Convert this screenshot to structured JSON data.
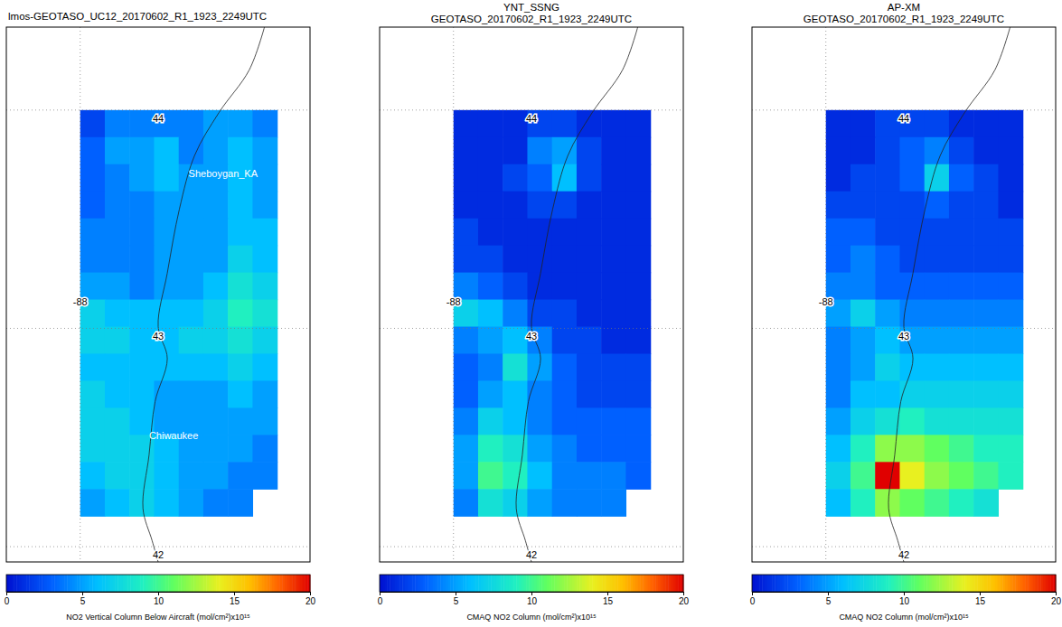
{
  "chart_data": [
    {
      "type": "heatmap",
      "title": "lmos-GEOTASO_UC12_20170602_R1_1923_2249UTC",
      "xlim": [
        -88.45,
        -86.6
      ],
      "ylim": [
        41.93,
        44.38
      ],
      "xticks": [
        -88
      ],
      "yticks": [
        42,
        43,
        44
      ],
      "grid": true,
      "annotations": [
        "Sheboygan_KA",
        "Chiwaukee"
      ],
      "x": [
        -87.925,
        -87.775,
        -87.625,
        -87.475,
        -87.325,
        -87.175,
        -87.025,
        -86.875
      ],
      "y": [
        43.938,
        43.814,
        43.69,
        43.566,
        43.442,
        43.318,
        43.194,
        43.07,
        42.946,
        42.822,
        42.698,
        42.574,
        42.45,
        42.326,
        42.202
      ],
      "cells": [
        [
          2,
          4,
          4,
          4,
          4,
          5,
          5,
          4
        ],
        [
          3,
          5,
          5,
          6,
          4,
          5,
          6,
          5
        ],
        [
          3,
          4,
          5,
          6,
          5,
          5,
          6,
          5
        ],
        [
          3,
          4,
          4,
          5,
          5,
          5,
          6,
          5
        ],
        [
          4,
          4,
          4,
          5,
          5,
          5,
          6,
          6
        ],
        [
          4,
          4,
          4,
          5,
          5,
          5,
          7,
          6
        ],
        [
          5,
          5,
          4,
          5,
          5,
          6,
          8,
          7
        ],
        [
          7,
          6,
          6,
          6,
          6,
          7,
          9,
          8
        ],
        [
          7,
          7,
          6,
          6,
          7,
          7,
          8,
          7
        ],
        [
          6,
          6,
          6,
          6,
          6,
          6,
          7,
          6
        ],
        [
          7,
          6,
          6,
          5,
          5,
          5,
          6,
          5
        ],
        [
          7,
          7,
          6,
          5,
          5,
          5,
          5,
          5
        ],
        [
          7,
          7,
          7,
          6,
          5,
          5,
          5,
          4
        ],
        [
          6,
          7,
          7,
          6,
          5,
          5,
          4,
          4
        ],
        [
          5,
          6,
          7,
          6,
          5,
          4,
          4,
          null
        ]
      ],
      "colorbar": {
        "range": [
          0,
          20
        ],
        "ticks": [
          0,
          5,
          10,
          15,
          20
        ],
        "label": "NO2 Vertical Column Below Aircraft (mol/cm²)x10¹⁵"
      }
    },
    {
      "type": "heatmap",
      "title": "YNT_SSNG",
      "subtitle": "GEOTASO_20170602_R1_1923_2249UTC",
      "xlim": [
        -88.45,
        -86.6
      ],
      "ylim": [
        41.93,
        44.38
      ],
      "xticks": [
        -88
      ],
      "yticks": [
        42,
        43,
        44
      ],
      "grid": true,
      "x": [
        -87.925,
        -87.775,
        -87.625,
        -87.475,
        -87.325,
        -87.175,
        -87.025,
        -86.875
      ],
      "y": [
        43.938,
        43.814,
        43.69,
        43.566,
        43.442,
        43.318,
        43.194,
        43.07,
        42.946,
        42.822,
        42.698,
        42.574,
        42.45,
        42.326,
        42.202
      ],
      "cells": [
        [
          1,
          1,
          1,
          2,
          2,
          1,
          1,
          1
        ],
        [
          1,
          1,
          1,
          4,
          5,
          2,
          1,
          1
        ],
        [
          1,
          1,
          2,
          3,
          6,
          2,
          1,
          1
        ],
        [
          1,
          1,
          1,
          2,
          2,
          1,
          1,
          1
        ],
        [
          2,
          1,
          1,
          1,
          1,
          1,
          1,
          1
        ],
        [
          2,
          2,
          1,
          1,
          1,
          1,
          1,
          1
        ],
        [
          4,
          3,
          2,
          1,
          1,
          1,
          1,
          1
        ],
        [
          7,
          6,
          4,
          2,
          2,
          1,
          1,
          1
        ],
        [
          4,
          5,
          6,
          4,
          2,
          2,
          1,
          1
        ],
        [
          3,
          4,
          8,
          5,
          3,
          2,
          2,
          2
        ],
        [
          3,
          5,
          6,
          4,
          3,
          2,
          2,
          2
        ],
        [
          4,
          7,
          6,
          4,
          3,
          3,
          3,
          3
        ],
        [
          5,
          9,
          8,
          5,
          4,
          3,
          3,
          3
        ],
        [
          5,
          10,
          9,
          6,
          4,
          4,
          4,
          3
        ],
        [
          4,
          8,
          7,
          5,
          4,
          4,
          4,
          null
        ]
      ],
      "colorbar": {
        "range": [
          0,
          20
        ],
        "ticks": [
          0,
          5,
          10,
          15,
          20
        ],
        "label": "CMAQ NO2 Column (mol/cm²)x10¹⁵"
      }
    },
    {
      "type": "heatmap",
      "title": "AP-XM",
      "subtitle": "GEOTASO_20170602_R1_1923_2249UTC",
      "xlim": [
        -88.45,
        -86.6
      ],
      "ylim": [
        41.93,
        44.38
      ],
      "xticks": [
        -88
      ],
      "yticks": [
        42,
        43,
        44
      ],
      "grid": true,
      "x": [
        -87.925,
        -87.775,
        -87.625,
        -87.475,
        -87.325,
        -87.175,
        -87.025,
        -86.875
      ],
      "y": [
        43.938,
        43.814,
        43.69,
        43.566,
        43.442,
        43.318,
        43.194,
        43.07,
        42.946,
        42.822,
        42.698,
        42.574,
        42.45,
        42.326,
        42.202
      ],
      "cells": [
        [
          1,
          1,
          2,
          2,
          2,
          1,
          1,
          1
        ],
        [
          1,
          1,
          2,
          3,
          4,
          2,
          1,
          1
        ],
        [
          1,
          2,
          2,
          3,
          7,
          3,
          2,
          1
        ],
        [
          2,
          2,
          2,
          2,
          3,
          2,
          2,
          1
        ],
        [
          3,
          3,
          2,
          2,
          2,
          2,
          2,
          2
        ],
        [
          3,
          4,
          3,
          2,
          2,
          2,
          2,
          2
        ],
        [
          4,
          4,
          3,
          3,
          3,
          3,
          3,
          3
        ],
        [
          5,
          7,
          5,
          4,
          4,
          4,
          4,
          4
        ],
        [
          4,
          5,
          6,
          5,
          5,
          5,
          5,
          5
        ],
        [
          4,
          5,
          7,
          6,
          6,
          6,
          6,
          6
        ],
        [
          4,
          6,
          6,
          7,
          7,
          7,
          7,
          7
        ],
        [
          5,
          7,
          8,
          9,
          8,
          8,
          8,
          8
        ],
        [
          6,
          9,
          12,
          12,
          11,
          10,
          9,
          9
        ],
        [
          7,
          10,
          20,
          14,
          12,
          11,
          10,
          9
        ],
        [
          6,
          9,
          12,
          11,
          10,
          9,
          8,
          null
        ]
      ],
      "colorbar": {
        "range": [
          0,
          20
        ],
        "ticks": [
          0,
          5,
          10,
          15,
          20
        ],
        "label": "CMAQ NO2 Column (mol/cm²)x10¹⁵"
      }
    }
  ]
}
